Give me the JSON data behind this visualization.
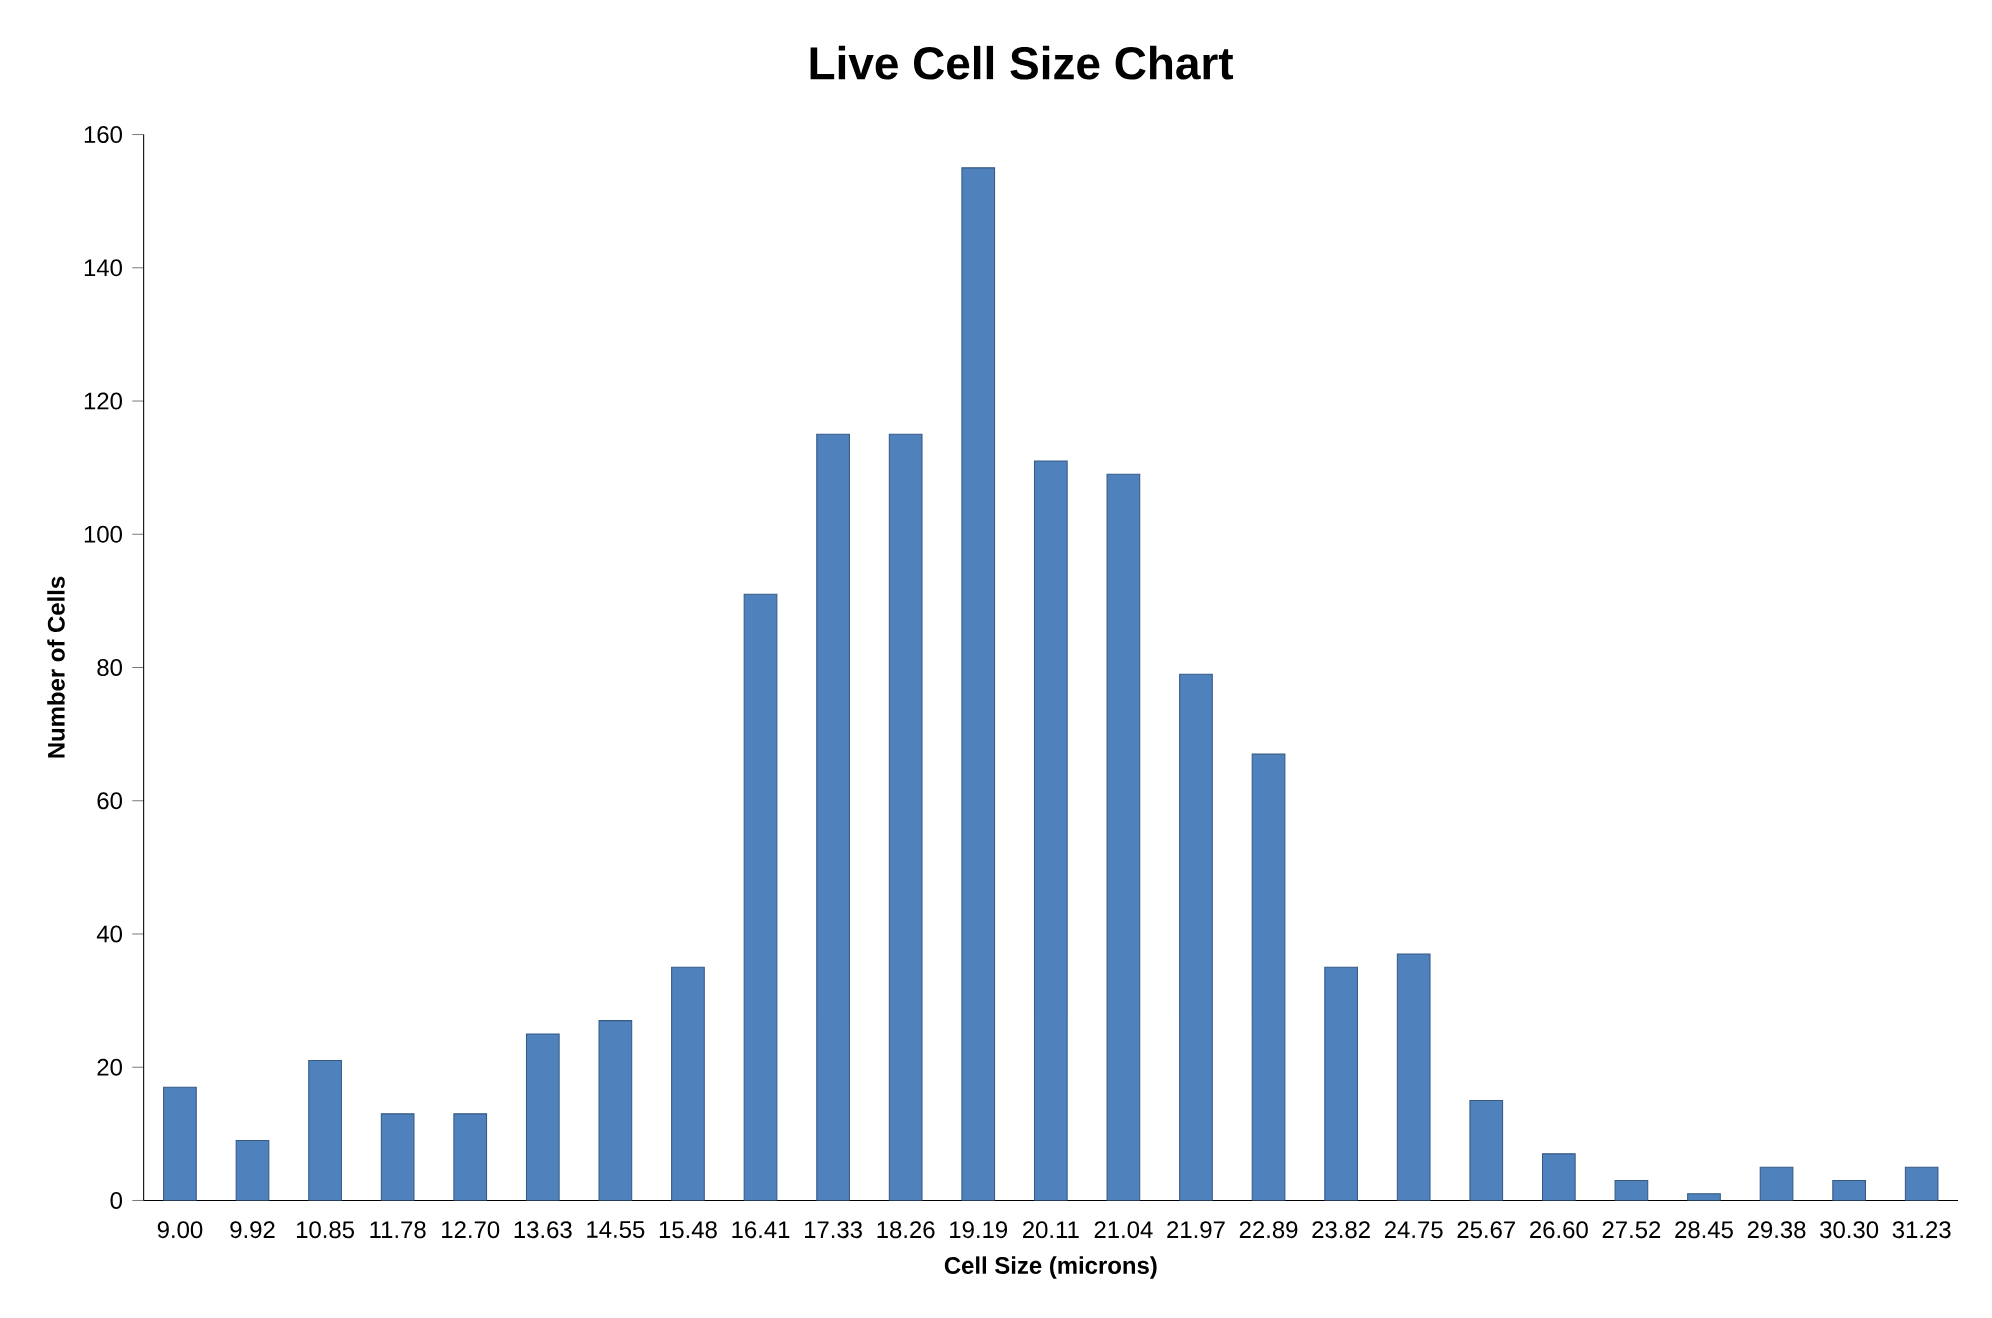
{
  "chart_data": {
    "type": "bar",
    "title": "Live Cell Size Chart",
    "xlabel": "Cell Size (microns)",
    "ylabel": "Number of Cells",
    "categories": [
      "9.00",
      "9.92",
      "10.85",
      "11.78",
      "12.70",
      "13.63",
      "14.55",
      "15.48",
      "16.41",
      "17.33",
      "18.26",
      "19.19",
      "20.11",
      "21.04",
      "21.97",
      "22.89",
      "23.82",
      "24.75",
      "25.67",
      "26.60",
      "27.52",
      "28.45",
      "29.38",
      "30.30",
      "31.23"
    ],
    "values": [
      17,
      9,
      21,
      13,
      13,
      25,
      27,
      35,
      91,
      115,
      115,
      155,
      111,
      109,
      79,
      67,
      35,
      37,
      15,
      7,
      3,
      1,
      5,
      3,
      5
    ],
    "color": "#4f81bd",
    "ylim": [
      0,
      160
    ],
    "yticks": [
      0,
      20,
      40,
      60,
      80,
      100,
      120,
      140,
      160
    ]
  }
}
